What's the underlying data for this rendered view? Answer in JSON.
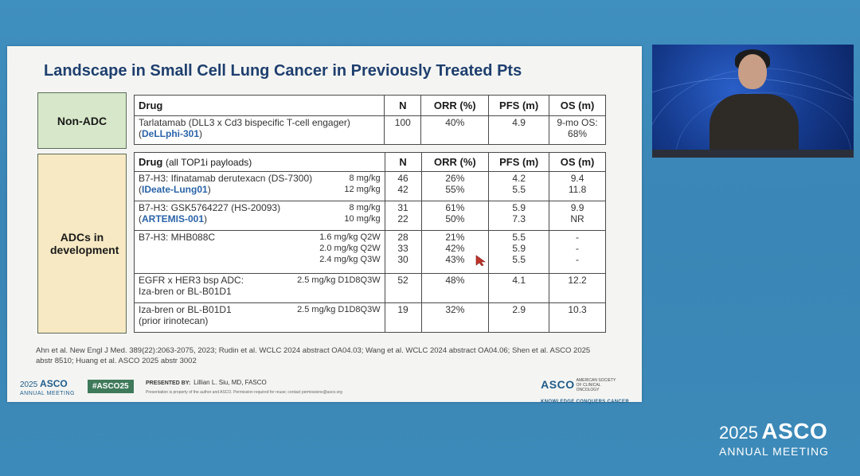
{
  "slide": {
    "title": "Landscape in Small Cell Lung Cancer in Previously Treated Pts",
    "groups": {
      "non_adc": "Non-ADC",
      "adc": "ADCs in development"
    },
    "table1": {
      "headers": {
        "drug": "Drug",
        "n": "N",
        "orr": "ORR (%)",
        "pfs": "PFS (m)",
        "os": "OS (m)"
      },
      "row": {
        "drug_line1": "Tarlatamab (DLL3 x Cd3 bispecific T-cell engager)",
        "trial": "DeLLphi-301",
        "n": "100",
        "orr": "40%",
        "pfs": "4.9",
        "os_line1": "9-mo OS:",
        "os_line2": "68%"
      }
    },
    "table2": {
      "headers": {
        "drug": "Drug",
        "drug_note": "(all TOP1i payloads)",
        "n": "N",
        "orr": "ORR (%)",
        "pfs": "PFS (m)",
        "os": "OS (m)"
      },
      "r1": {
        "line1": "B7-H3: Ifinatamab derutexacn (DS-7300)",
        "trial": "IDeate-Lung01",
        "doses": [
          "8 mg/kg",
          "12 mg/kg"
        ],
        "n": [
          "46",
          "42"
        ],
        "orr": [
          "26%",
          "55%"
        ],
        "pfs": [
          "4.2",
          "5.5"
        ],
        "os": [
          "9.4",
          "11.8"
        ]
      },
      "r2": {
        "line1": "B7-H3: GSK5764227 (HS-20093)",
        "trial": "ARTEMIS-001",
        "doses": [
          "8 mg/kg",
          "10 mg/kg"
        ],
        "n": [
          "31",
          "22"
        ],
        "orr": [
          "61%",
          "50%"
        ],
        "pfs": [
          "5.9",
          "7.3"
        ],
        "os": [
          "9.9",
          "NR"
        ]
      },
      "r3": {
        "line1": "B7-H3: MHB088C",
        "doses": [
          "1.6 mg/kg Q2W",
          "2.0 mg/kg Q2W",
          "2.4 mg/kg Q3W"
        ],
        "n": [
          "28",
          "33",
          "30"
        ],
        "orr": [
          "21%",
          "42%",
          "43%"
        ],
        "pfs": [
          "5.5",
          "5.9",
          "5.5"
        ],
        "os": [
          "-",
          "-",
          "-"
        ]
      },
      "r4": {
        "line1": "EGFR x HER3 bsp ADC:",
        "line2": "Iza-bren or BL-B01D1",
        "dose": "2.5 mg/kg D1D8Q3W",
        "n": "52",
        "orr": "48%",
        "pfs": "4.1",
        "os": "12.2"
      },
      "r5": {
        "line1": "Iza-bren or BL-B01D1",
        "line2": "(prior irinotecan)",
        "dose": "2.5 mg/kg D1D8Q3W",
        "n": "19",
        "orr": "32%",
        "pfs": "2.9",
        "os": "10.3"
      }
    },
    "references": "Ahn et al. New Engl J Med. 389(22):2063-2075, 2023; Rudin et al. WCLC 2024 abstract OA04.03; Wang et al. WCLC 2024 abstract OA04.06; Shen et al. ASCO 2025 abstr 8510; Huang et al. ASCO 2025 abstr 3002",
    "footer": {
      "year": "2025",
      "asco": "ASCO",
      "meeting": "ANNUAL MEETING",
      "hashtag": "#ASCO25",
      "presented_by": "PRESENTED BY:",
      "presenter": "Lillian L. Siu, MD, FASCO",
      "note": "Presentation is property of the author and ASCO. Permission required for reuse; contact permissions@asco.org",
      "asco_logo": "ASCO",
      "society": "AMERICAN SOCIETY OF CLINICAL ONCOLOGY",
      "tagline": "KNOWLEDGE CONQUERS CANCER"
    }
  },
  "brand": {
    "year": "2025",
    "name": "ASCO",
    "meeting": "ANNUAL MEETING"
  },
  "icons": {
    "cursor": "cursor-arrow-icon"
  },
  "colors": {
    "title": "#1f3f6e",
    "trial_link": "#2a64a8",
    "non_adc_fill": "#d6e8c9",
    "adc_fill": "#f6e9c3",
    "background": "#3f8fbf"
  }
}
